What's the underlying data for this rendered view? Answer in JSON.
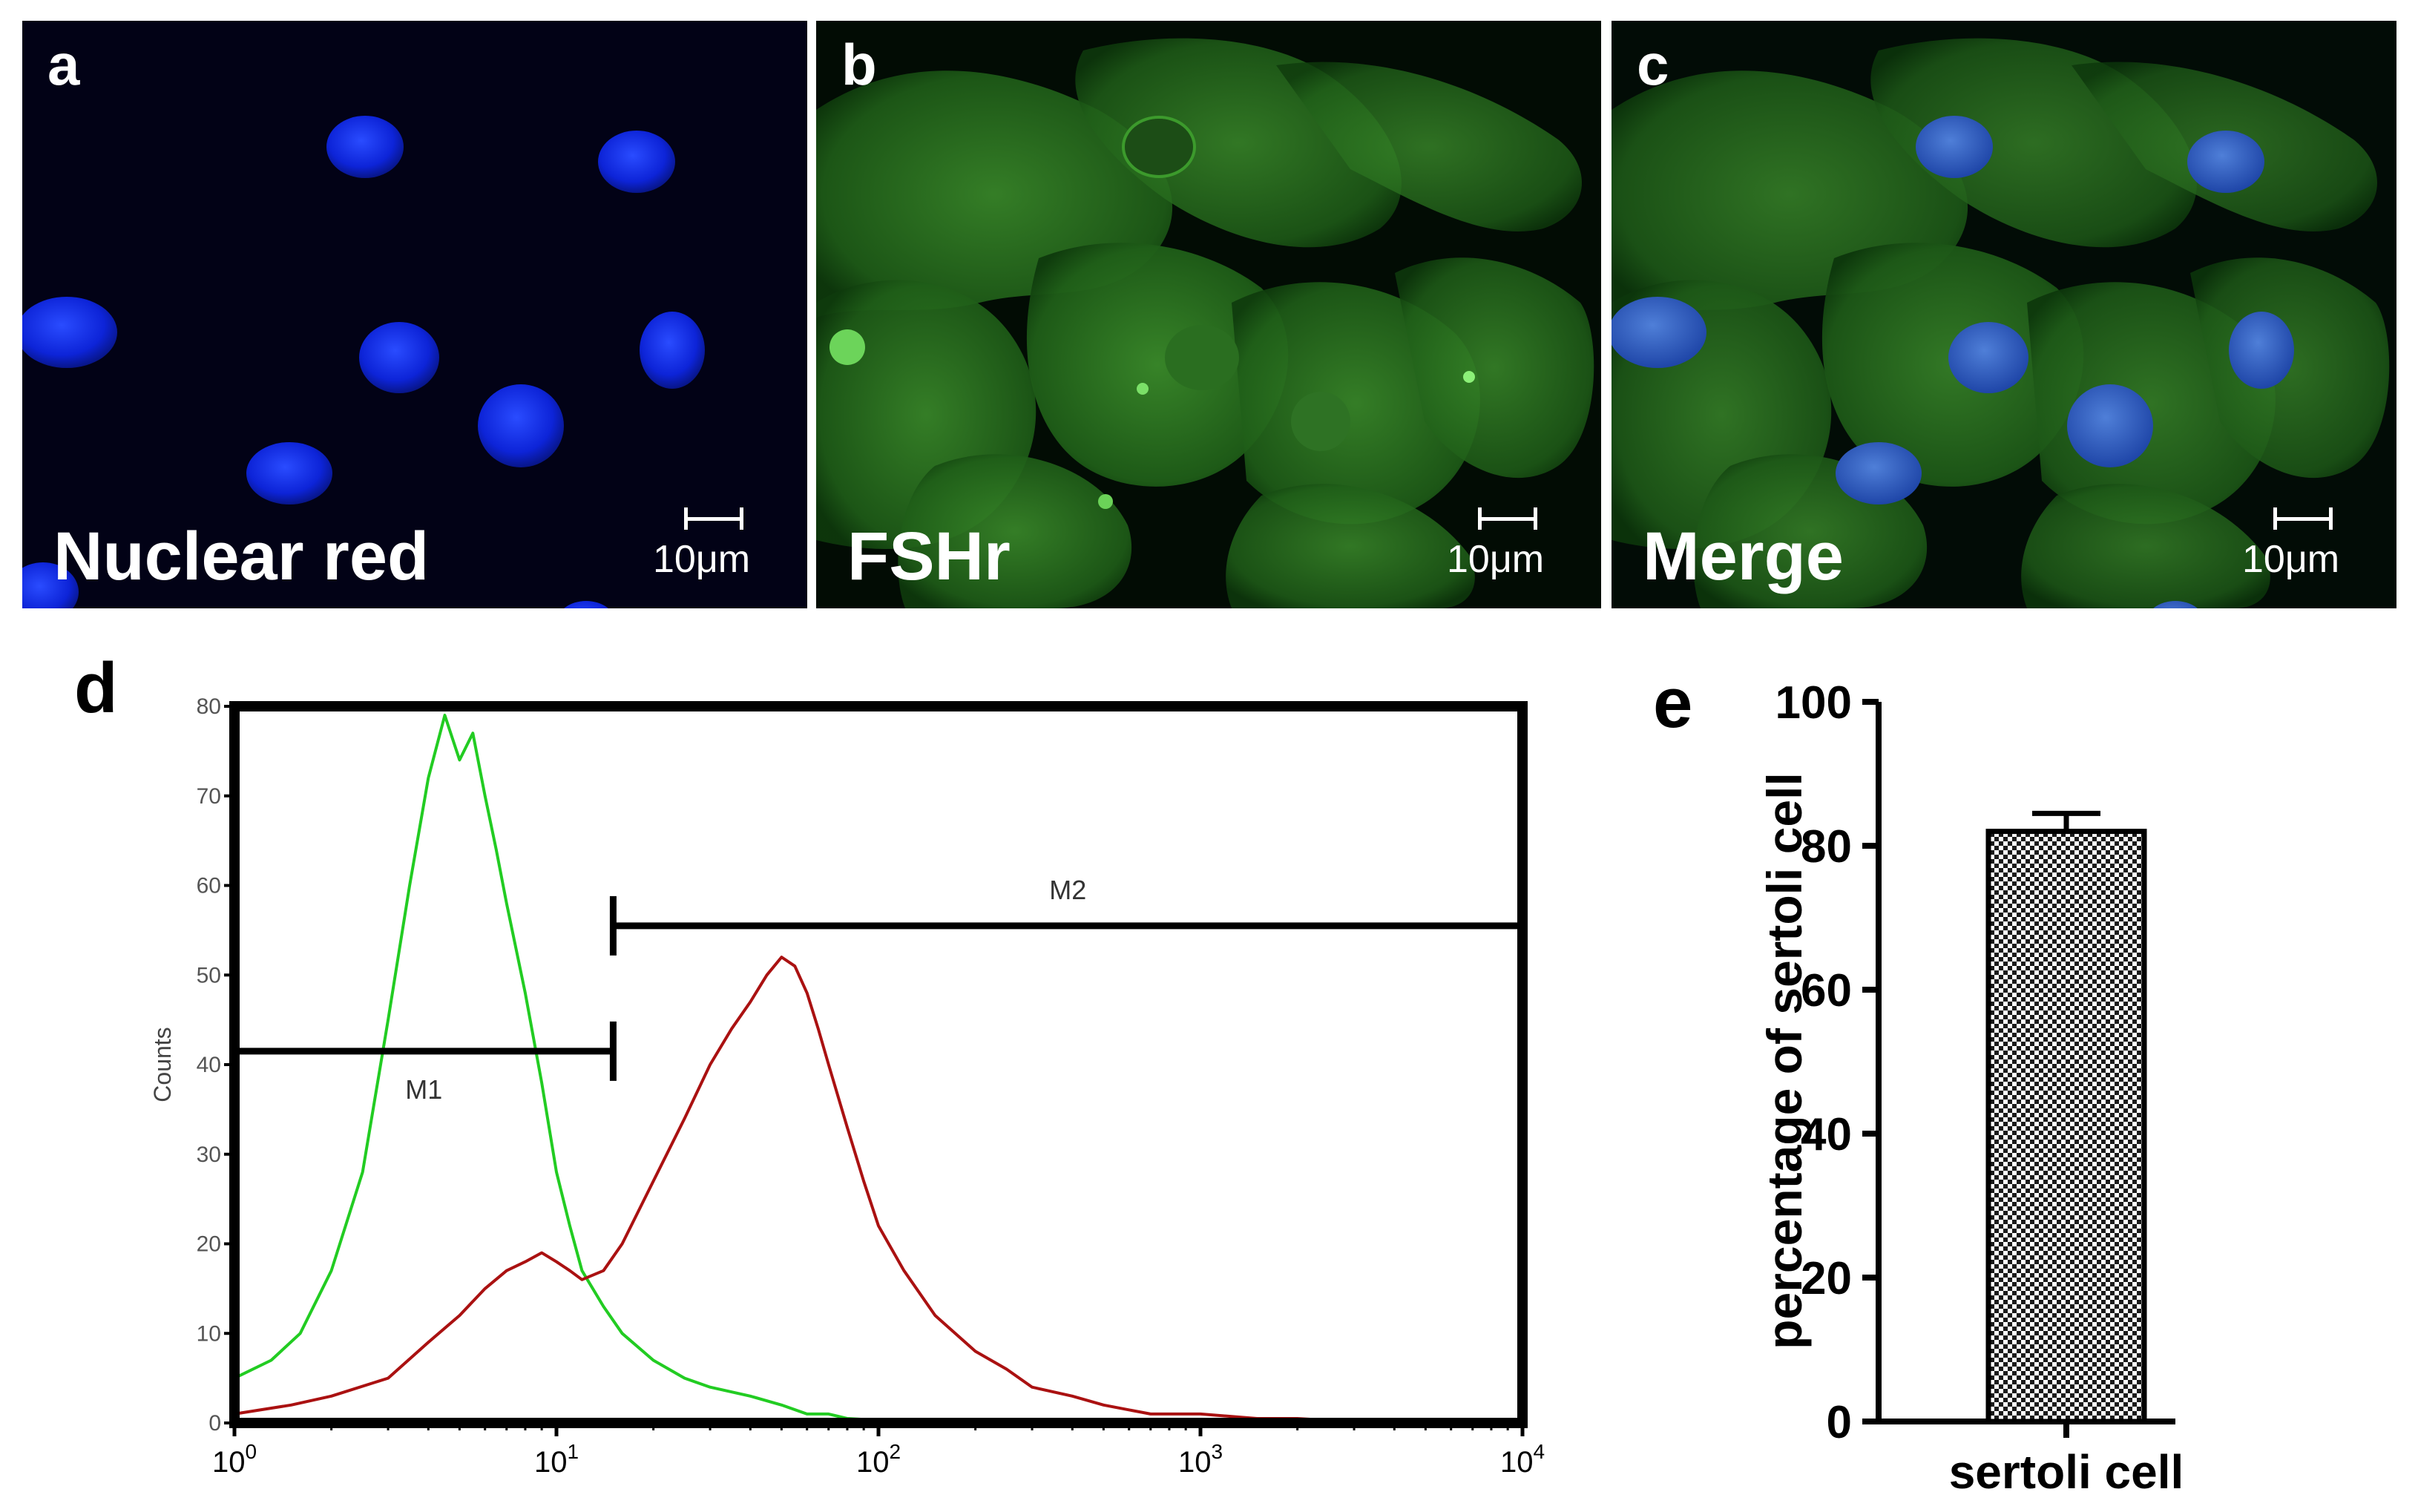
{
  "panels": {
    "a": {
      "letter": "a",
      "stain": "Nuclear red",
      "scale": "10μm"
    },
    "b": {
      "letter": "b",
      "stain": "FSHr",
      "scale": "10μm"
    },
    "c": {
      "letter": "c",
      "stain": "Merge",
      "scale": "10μm"
    }
  },
  "histogram": {
    "letter": "d",
    "chart_data": {
      "type": "line",
      "ylabel": "Counts",
      "x_scale": "log",
      "xlim": [
        1,
        10000
      ],
      "ylim": [
        0,
        80
      ],
      "x_ticks": [
        "10^0",
        "10^1",
        "10^2",
        "10^3",
        "10^4"
      ],
      "y_ticks": [
        0,
        10,
        20,
        30,
        40,
        50,
        60,
        70,
        80
      ],
      "gates": [
        {
          "name": "M1",
          "x": [
            1,
            15
          ],
          "y": 41.5
        },
        {
          "name": "M2",
          "x": [
            15,
            10000
          ],
          "y": 55.5
        }
      ],
      "series": [
        {
          "color": "#22cc22",
          "x": [
            1,
            1.3,
            1.6,
            2,
            2.5,
            3,
            3.5,
            4,
            4.5,
            5,
            5.5,
            6,
            6.5,
            7,
            8,
            9,
            10,
            11,
            12,
            14,
            16,
            20,
            25,
            30,
            40,
            50,
            60,
            70,
            80,
            100,
            120,
            140
          ],
          "y": [
            5,
            7,
            10,
            17,
            28,
            45,
            60,
            72,
            79,
            74,
            77,
            70,
            64,
            58,
            48,
            38,
            28,
            22,
            17,
            13,
            10,
            7,
            5,
            4,
            3,
            2,
            1,
            1,
            0.5,
            0.3,
            0.2,
            0
          ]
        },
        {
          "color": "#aa1111",
          "x": [
            1,
            1.5,
            2,
            3,
            4,
            5,
            6,
            7,
            8,
            9,
            10,
            11,
            12,
            14,
            16,
            20,
            25,
            30,
            35,
            40,
            45,
            50,
            55,
            60,
            65,
            70,
            80,
            90,
            100,
            120,
            150,
            200,
            250,
            300,
            400,
            500,
            700,
            1000,
            1500,
            2000,
            2500,
            3000
          ],
          "y": [
            1,
            2,
            3,
            5,
            9,
            12,
            15,
            17,
            18,
            19,
            18,
            17,
            16,
            17,
            20,
            27,
            34,
            40,
            44,
            47,
            50,
            52,
            51,
            48,
            44,
            40,
            33,
            27,
            22,
            17,
            12,
            8,
            6,
            4,
            3,
            2,
            1,
            1,
            0.5,
            0.5,
            0.3,
            0
          ]
        }
      ]
    }
  },
  "bar": {
    "letter": "e",
    "chart_data": {
      "type": "bar",
      "categories": [
        "sertoli cell"
      ],
      "values": [
        82
      ],
      "error": [
        2.5
      ],
      "ylabel": "percentage of sertoli cell",
      "ylim": [
        0,
        100
      ],
      "y_ticks": [
        0,
        20,
        40,
        60,
        80,
        100
      ]
    }
  }
}
